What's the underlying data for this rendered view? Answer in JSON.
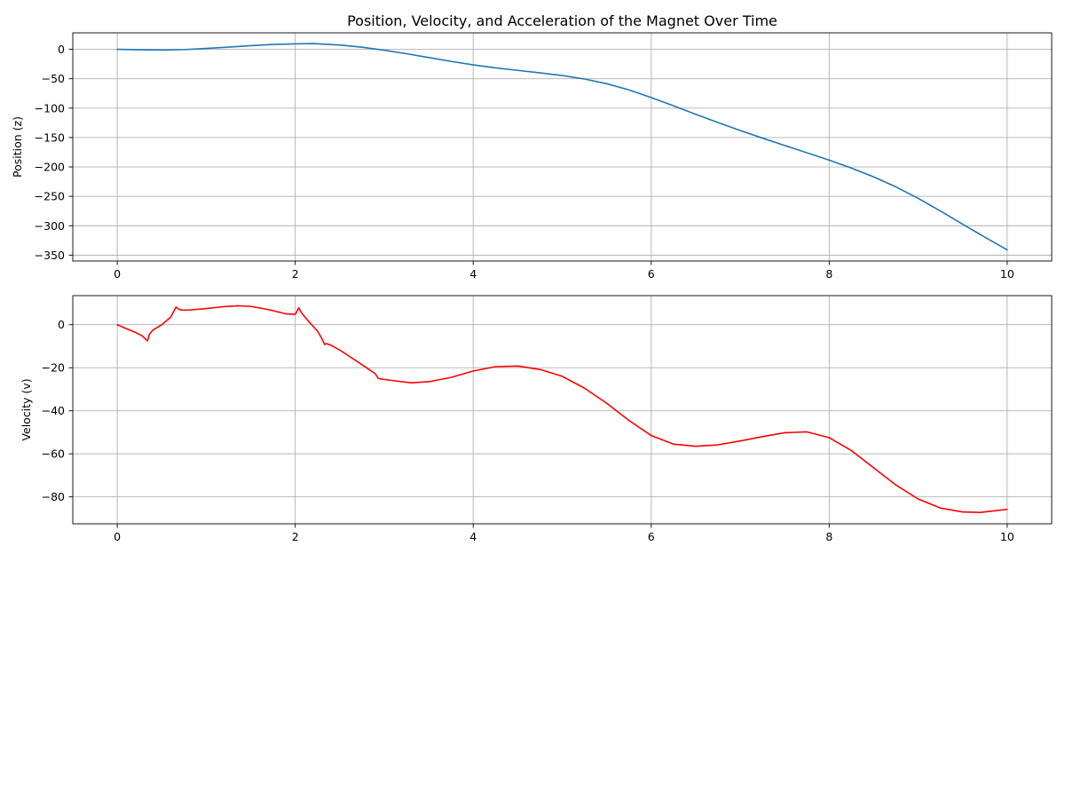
{
  "figure": {
    "title": "Position, Velocity, and Acceleration of the Magnet Over Time"
  },
  "chart_data": [
    {
      "type": "line",
      "title": "Position, Velocity, and Acceleration of the Magnet Over Time",
      "xlabel": "",
      "ylabel": "Position (z)",
      "xlim": [
        -0.5,
        10.5
      ],
      "ylim": [
        -360,
        28
      ],
      "xticks": [
        0,
        2,
        4,
        6,
        8,
        10
      ],
      "yticks": [
        0,
        -50,
        -100,
        -150,
        -200,
        -250,
        -300,
        -350
      ],
      "ytick_labels": [
        "0",
        "−50",
        "−100",
        "−150",
        "−200",
        "−250",
        "−300",
        "−350"
      ],
      "grid": true,
      "series": [
        {
          "color": "#1f77b4",
          "x": [
            0,
            0.25,
            0.5,
            0.75,
            1.0,
            1.25,
            1.5,
            1.75,
            2.0,
            2.2,
            2.5,
            2.75,
            3.0,
            3.25,
            3.5,
            3.75,
            4.0,
            4.25,
            4.5,
            4.75,
            5.0,
            5.25,
            5.5,
            5.75,
            6.0,
            6.25,
            6.5,
            6.75,
            7.0,
            7.25,
            7.5,
            7.75,
            8.0,
            8.25,
            8.5,
            8.75,
            9.0,
            9.25,
            9.5,
            9.75,
            10.0
          ],
          "y": [
            0,
            -0.8,
            -1.2,
            -0.5,
            1.5,
            3.8,
            6.2,
            8.2,
            9.3,
            9.8,
            7.3,
            3.6,
            -1.5,
            -7.5,
            -14,
            -20.5,
            -26.5,
            -31.5,
            -35.8,
            -40,
            -44.5,
            -50.5,
            -58.5,
            -69,
            -82,
            -96,
            -110.5,
            -124.5,
            -138,
            -151,
            -163.5,
            -176,
            -188.5,
            -202,
            -217,
            -234,
            -253.5,
            -275,
            -297.5,
            -319.5,
            -341
          ]
        }
      ]
    },
    {
      "type": "line",
      "xlabel": "",
      "ylabel": "Velocity (v)",
      "xlim": [
        -0.5,
        10.5
      ],
      "ylim": [
        -92.5,
        13.5
      ],
      "xticks": [
        0,
        2,
        4,
        6,
        8,
        10
      ],
      "yticks": [
        0,
        -20,
        -40,
        -60,
        -80
      ],
      "ytick_labels": [
        "0",
        "−20",
        "−40",
        "−60",
        "−80"
      ],
      "grid": true,
      "series": [
        {
          "color": "#ff0000",
          "x": [
            0,
            0.1,
            0.2,
            0.28,
            0.34,
            0.36,
            0.4,
            0.5,
            0.6,
            0.66,
            0.68,
            0.72,
            0.8,
            1.0,
            1.2,
            1.35,
            1.5,
            1.7,
            1.9,
            2.0,
            2.04,
            2.07,
            2.15,
            2.25,
            2.3,
            2.33,
            2.35,
            2.4,
            2.5,
            2.6,
            2.7,
            2.8,
            2.9,
            2.93,
            2.96,
            3.1,
            3.3,
            3.5,
            3.75,
            4.0,
            4.25,
            4.5,
            4.75,
            5.0,
            5.25,
            5.5,
            5.75,
            6.0,
            6.25,
            6.5,
            6.75,
            7.0,
            7.25,
            7.5,
            7.75,
            8.0,
            8.25,
            8.5,
            8.75,
            9.0,
            9.25,
            9.5,
            9.7,
            9.85,
            10.0
          ],
          "y": [
            0,
            -1.8,
            -3.5,
            -5.2,
            -7.5,
            -4.5,
            -2.5,
            0,
            3.5,
            8.2,
            7.5,
            6.8,
            6.8,
            7.5,
            8.4,
            8.8,
            8.5,
            7,
            5,
            4.8,
            7.8,
            5.5,
            1.5,
            -3,
            -6.5,
            -9.2,
            -8.8,
            -9.5,
            -11.8,
            -14.5,
            -17.2,
            -20,
            -22.8,
            -24.8,
            -25.2,
            -26,
            -27,
            -26.5,
            -24.5,
            -21.5,
            -19.5,
            -19.2,
            -20.8,
            -24,
            -29.5,
            -36.5,
            -44.5,
            -51.5,
            -55.5,
            -56.5,
            -55.8,
            -54,
            -52,
            -50.2,
            -49.8,
            -52.5,
            -58.5,
            -66.5,
            -74.5,
            -81,
            -85.2,
            -87,
            -87.2,
            -86.5,
            -85.8
          ]
        }
      ]
    }
  ]
}
